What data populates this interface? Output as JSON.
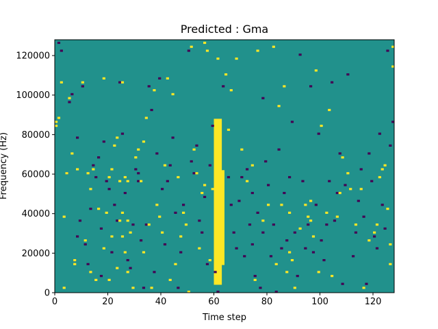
{
  "chart_data": {
    "type": "heatmap",
    "title": "Predicted : Gma",
    "xlabel": "Time step",
    "ylabel": "Frequency (Hz)",
    "xlim": [
      0,
      128
    ],
    "ylim": [
      0,
      128000
    ],
    "grid": false,
    "xticks": [
      {
        "value": 0,
        "label": "0"
      },
      {
        "value": 20,
        "label": "20"
      },
      {
        "value": 40,
        "label": "40"
      },
      {
        "value": 60,
        "label": "60"
      },
      {
        "value": 80,
        "label": "80"
      },
      {
        "value": 100,
        "label": "100"
      },
      {
        "value": 120,
        "label": "120"
      }
    ],
    "yticks": [
      {
        "value": 0,
        "label": "0"
      },
      {
        "value": 20000,
        "label": "20000"
      },
      {
        "value": 40000,
        "label": "40000"
      },
      {
        "value": 60000,
        "label": "60000"
      },
      {
        "value": 80000,
        "label": "80000"
      },
      {
        "value": 100000,
        "label": "100000"
      },
      {
        "value": 120000,
        "label": "120000"
      }
    ],
    "grid_size": {
      "time_steps": 128,
      "frequency_bins": 128
    },
    "cell_values": {
      "low": -1,
      "background": 0,
      "high": 1
    },
    "colors": {
      "low": "#440154",
      "background": "#21918c",
      "high": "#fde725"
    },
    "bright_bands": [
      {
        "t_start": 60,
        "t_end": 63,
        "f_start": 4000,
        "f_end": 88000
      },
      {
        "t_start": 62,
        "t_end": 64,
        "f_start": 14000,
        "f_end": 62000
      }
    ],
    "cells_high": [
      [
        0,
        84000
      ],
      [
        0,
        86000
      ],
      [
        1,
        88000
      ],
      [
        2,
        106000
      ],
      [
        3,
        2000
      ],
      [
        3,
        38000
      ],
      [
        4,
        60000
      ],
      [
        5,
        98000
      ],
      [
        6,
        70000
      ],
      [
        7,
        16000
      ],
      [
        7,
        14000
      ],
      [
        8,
        62000
      ],
      [
        10,
        106000
      ],
      [
        11,
        26000
      ],
      [
        12,
        60000
      ],
      [
        13,
        52000
      ],
      [
        13,
        10000
      ],
      [
        14,
        62000
      ],
      [
        15,
        6000
      ],
      [
        16,
        42000
      ],
      [
        18,
        108000
      ],
      [
        18,
        22000
      ],
      [
        19,
        40000
      ],
      [
        20,
        58000
      ],
      [
        20,
        6000
      ],
      [
        21,
        62000
      ],
      [
        21,
        28000
      ],
      [
        23,
        78000
      ],
      [
        22,
        74000
      ],
      [
        23,
        12000
      ],
      [
        24,
        36000
      ],
      [
        24,
        56000
      ],
      [
        25,
        106000
      ],
      [
        25,
        40000
      ],
      [
        25,
        28000
      ],
      [
        26,
        58000
      ],
      [
        26,
        20000
      ],
      [
        27,
        56000
      ],
      [
        27,
        36000
      ],
      [
        27,
        10000
      ],
      [
        28,
        30000
      ],
      [
        29,
        2000
      ],
      [
        30,
        68000
      ],
      [
        31,
        72000
      ],
      [
        32,
        56000
      ],
      [
        33,
        76000
      ],
      [
        33,
        20000
      ],
      [
        34,
        88000
      ],
      [
        35,
        34000
      ],
      [
        36,
        2000
      ],
      [
        37,
        102000
      ],
      [
        38,
        44000
      ],
      [
        39,
        38000
      ],
      [
        40,
        30000
      ],
      [
        41,
        64000
      ],
      [
        42,
        108000
      ],
      [
        43,
        6000
      ],
      [
        45,
        14000
      ],
      [
        46,
        58000
      ],
      [
        47,
        28000
      ],
      [
        48,
        40000
      ],
      [
        49,
        34000
      ],
      [
        50,
        0
      ],
      [
        51,
        124000
      ],
      [
        52,
        72000
      ],
      [
        53,
        60000
      ],
      [
        54,
        22000
      ],
      [
        55,
        50000
      ],
      [
        56,
        126000
      ],
      [
        56,
        54000
      ],
      [
        57,
        122000
      ],
      [
        58,
        16000
      ],
      [
        59,
        52000
      ],
      [
        60,
        30000
      ],
      [
        60,
        44000
      ],
      [
        61,
        118000
      ],
      [
        64,
        110000
      ],
      [
        66,
        102000
      ],
      [
        65,
        82000
      ],
      [
        68,
        118000
      ],
      [
        70,
        72000
      ],
      [
        72,
        56000
      ],
      [
        74,
        64000
      ],
      [
        75,
        6000
      ],
      [
        76,
        122000
      ],
      [
        78,
        36000
      ],
      [
        80,
        44000
      ],
      [
        82,
        124000
      ],
      [
        83,
        14000
      ],
      [
        84,
        94000
      ],
      [
        85,
        44000
      ],
      [
        86,
        104000
      ],
      [
        87,
        10000
      ],
      [
        88,
        40000
      ],
      [
        88,
        20000
      ],
      [
        89,
        16000
      ],
      [
        90,
        2000
      ],
      [
        92,
        32000
      ],
      [
        94,
        44000
      ],
      [
        95,
        38000
      ],
      [
        96,
        46000
      ],
      [
        96,
        36000
      ],
      [
        97,
        28000
      ],
      [
        98,
        112000
      ],
      [
        99,
        10000
      ],
      [
        100,
        84000
      ],
      [
        102,
        40000
      ],
      [
        103,
        92000
      ],
      [
        104,
        8000
      ],
      [
        106,
        38000
      ],
      [
        107,
        50000
      ],
      [
        108,
        68000
      ],
      [
        110,
        60000
      ],
      [
        111,
        52000
      ],
      [
        113,
        34000
      ],
      [
        115,
        52000
      ],
      [
        116,
        2000
      ],
      [
        118,
        26000
      ],
      [
        120,
        30000
      ],
      [
        121,
        34000
      ],
      [
        122,
        58000
      ],
      [
        123,
        62000
      ],
      [
        124,
        64000
      ],
      [
        125,
        42000
      ],
      [
        126,
        24000
      ],
      [
        126,
        14000
      ],
      [
        127,
        114000
      ],
      [
        127,
        124000
      ],
      [
        44,
        100000
      ]
    ],
    "cells_low": [
      [
        1,
        126000
      ],
      [
        2,
        122000
      ],
      [
        4,
        60000
      ],
      [
        5,
        96000
      ],
      [
        6,
        100000
      ],
      [
        7,
        16000
      ],
      [
        8,
        28000
      ],
      [
        8,
        78000
      ],
      [
        9,
        36000
      ],
      [
        10,
        104000
      ],
      [
        11,
        24000
      ],
      [
        12,
        14000
      ],
      [
        13,
        42000
      ],
      [
        14,
        64000
      ],
      [
        15,
        58000
      ],
      [
        16,
        68000
      ],
      [
        17,
        8000
      ],
      [
        17,
        32000
      ],
      [
        18,
        76000
      ],
      [
        19,
        56000
      ],
      [
        20,
        52000
      ],
      [
        21,
        20000
      ],
      [
        22,
        44000
      ],
      [
        23,
        36000
      ],
      [
        24,
        106000
      ],
      [
        25,
        80000
      ],
      [
        26,
        50000
      ],
      [
        27,
        16000
      ],
      [
        28,
        12000
      ],
      [
        29,
        34000
      ],
      [
        30,
        62000
      ],
      [
        31,
        60000
      ],
      [
        31,
        56000
      ],
      [
        32,
        26000
      ],
      [
        33,
        2000
      ],
      [
        34,
        34000
      ],
      [
        35,
        104000
      ],
      [
        36,
        92000
      ],
      [
        37,
        10000
      ],
      [
        38,
        70000
      ],
      [
        39,
        108000
      ],
      [
        40,
        52000
      ],
      [
        41,
        24000
      ],
      [
        42,
        56000
      ],
      [
        43,
        64000
      ],
      [
        44,
        78000
      ],
      [
        45,
        40000
      ],
      [
        46,
        2000
      ],
      [
        47,
        20000
      ],
      [
        48,
        44000
      ],
      [
        49,
        128000
      ],
      [
        50,
        122000
      ],
      [
        51,
        66000
      ],
      [
        52,
        60000
      ],
      [
        53,
        74000
      ],
      [
        54,
        36000
      ],
      [
        55,
        30000
      ],
      [
        56,
        48000
      ],
      [
        57,
        14000
      ],
      [
        58,
        64000
      ],
      [
        59,
        84000
      ],
      [
        60,
        10000
      ],
      [
        61,
        0
      ],
      [
        63,
        104000
      ],
      [
        65,
        58000
      ],
      [
        66,
        44000
      ],
      [
        67,
        30000
      ],
      [
        68,
        22000
      ],
      [
        69,
        46000
      ],
      [
        70,
        58000
      ],
      [
        71,
        18000
      ],
      [
        72,
        62000
      ],
      [
        73,
        34000
      ],
      [
        74,
        50000
      ],
      [
        75,
        8000
      ],
      [
        76,
        40000
      ],
      [
        77,
        2000
      ],
      [
        78,
        30000
      ],
      [
        79,
        66000
      ],
      [
        80,
        54000
      ],
      [
        81,
        18000
      ],
      [
        82,
        34000
      ],
      [
        83,
        0
      ],
      [
        84,
        72000
      ],
      [
        85,
        22000
      ],
      [
        86,
        50000
      ],
      [
        87,
        26000
      ],
      [
        88,
        58000
      ],
      [
        89,
        86000
      ],
      [
        90,
        30000
      ],
      [
        91,
        8000
      ],
      [
        92,
        120000
      ],
      [
        93,
        56000
      ],
      [
        94,
        22000
      ],
      [
        95,
        34000
      ],
      [
        96,
        104000
      ],
      [
        97,
        20000
      ],
      [
        98,
        44000
      ],
      [
        99,
        80000
      ],
      [
        100,
        26000
      ],
      [
        101,
        16000
      ],
      [
        102,
        34000
      ],
      [
        103,
        56000
      ],
      [
        104,
        106000
      ],
      [
        105,
        36000
      ],
      [
        106,
        50000
      ],
      [
        107,
        70000
      ],
      [
        108,
        4000
      ],
      [
        109,
        54000
      ],
      [
        110,
        110000
      ],
      [
        112,
        18000
      ],
      [
        113,
        30000
      ],
      [
        114,
        46000
      ],
      [
        115,
        62000
      ],
      [
        116,
        38000
      ],
      [
        117,
        4000
      ],
      [
        118,
        70000
      ],
      [
        119,
        56000
      ],
      [
        120,
        28000
      ],
      [
        121,
        22000
      ],
      [
        122,
        80000
      ],
      [
        123,
        44000
      ],
      [
        124,
        32000
      ],
      [
        125,
        122000
      ],
      [
        126,
        74000
      ],
      [
        127,
        86000
      ],
      [
        78,
        98000
      ],
      [
        74,
        24000
      ]
    ]
  }
}
